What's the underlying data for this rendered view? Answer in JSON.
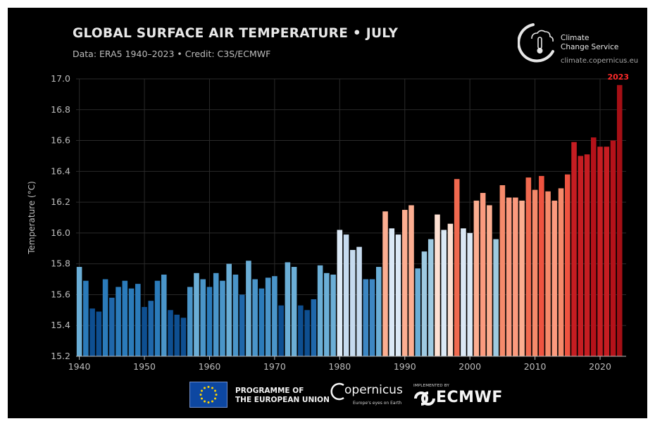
{
  "header": {
    "title": "GLOBAL SURFACE AIR TEMPERATURE • JULY",
    "subtitle": "Data: ERA5 1940–2023 • Credit: C3S/ECMWF"
  },
  "logos": {
    "c3s_line1": "Climate",
    "c3s_line2": "Change Service",
    "c3s_url": "climate.copernicus.eu",
    "eu_line1": "PROGRAMME OF",
    "eu_line2": "THE EUROPEAN UNION",
    "copernicus_name": "opernicus",
    "copernicus_tagline": "Europe's eyes on Earth",
    "ecmwf_implemented": "IMPLEMENTED BY",
    "ecmwf_name": "ECMWF"
  },
  "colors": {
    "background": "#000000",
    "highlight_label": "#ff2a2a"
  },
  "chart_data": {
    "type": "bar",
    "title": "GLOBAL SURFACE AIR TEMPERATURE • JULY",
    "ylabel": "Temperature (°C)",
    "xlabel": "",
    "ylim": [
      15.2,
      17.0
    ],
    "xlim": [
      1939.5,
      2024
    ],
    "yticks": [
      15.2,
      15.4,
      15.6,
      15.8,
      16.0,
      16.2,
      16.4,
      16.6,
      16.8,
      17.0
    ],
    "ytick_labels": [
      "15.2",
      "15.4",
      "15.6",
      "15.8",
      "16.0",
      "16.2",
      "16.4",
      "16.6",
      "16.8",
      "17.0"
    ],
    "xticks": [
      1940,
      1950,
      1960,
      1970,
      1980,
      1990,
      2000,
      2010,
      2020
    ],
    "xtick_labels": [
      "1940",
      "1950",
      "1960",
      "1970",
      "1980",
      "1990",
      "2000",
      "2010",
      "2020"
    ],
    "grid": true,
    "highlight": {
      "year": 2023,
      "label": "2023"
    },
    "years": [
      1940,
      1941,
      1942,
      1943,
      1944,
      1945,
      1946,
      1947,
      1948,
      1949,
      1950,
      1951,
      1952,
      1953,
      1954,
      1955,
      1956,
      1957,
      1958,
      1959,
      1960,
      1961,
      1962,
      1963,
      1964,
      1965,
      1966,
      1967,
      1968,
      1969,
      1970,
      1971,
      1972,
      1973,
      1974,
      1975,
      1976,
      1977,
      1978,
      1979,
      1980,
      1981,
      1982,
      1983,
      1984,
      1985,
      1986,
      1987,
      1988,
      1989,
      1990,
      1991,
      1992,
      1993,
      1994,
      1995,
      1996,
      1997,
      1998,
      1999,
      2000,
      2001,
      2002,
      2003,
      2004,
      2005,
      2006,
      2007,
      2008,
      2009,
      2010,
      2011,
      2012,
      2013,
      2014,
      2015,
      2016,
      2017,
      2018,
      2019,
      2020,
      2021,
      2022,
      2023
    ],
    "values": [
      15.78,
      15.69,
      15.51,
      15.49,
      15.7,
      15.58,
      15.65,
      15.69,
      15.64,
      15.67,
      15.52,
      15.56,
      15.69,
      15.73,
      15.5,
      15.47,
      15.45,
      15.65,
      15.74,
      15.7,
      15.65,
      15.74,
      15.69,
      15.8,
      15.73,
      15.6,
      15.82,
      15.7,
      15.64,
      15.71,
      15.72,
      15.53,
      15.81,
      15.78,
      15.53,
      15.5,
      15.57,
      15.79,
      15.74,
      15.73,
      16.02,
      15.99,
      15.89,
      15.91,
      15.7,
      15.7,
      15.78,
      16.14,
      16.03,
      15.99,
      16.15,
      16.18,
      15.77,
      15.88,
      15.96,
      16.12,
      16.02,
      16.06,
      16.35,
      16.03,
      16.0,
      16.21,
      16.26,
      16.18,
      15.96,
      16.31,
      16.23,
      16.23,
      16.21,
      16.36,
      16.28,
      16.37,
      16.27,
      16.21,
      16.29,
      16.38,
      16.59,
      16.5,
      16.51,
      16.62,
      16.56,
      16.56,
      16.6,
      16.96
    ],
    "colors": [
      "#6baed6",
      "#2b7bba",
      "#0e4f91",
      "#0e4f91",
      "#2b7bba",
      "#1f67aa",
      "#2b7bba",
      "#2b7bba",
      "#2b7bba",
      "#2b7bba",
      "#0e4f91",
      "#1f67aa",
      "#2b7bba",
      "#4a95c9",
      "#0e4f91",
      "#0e4f91",
      "#0e4f91",
      "#4a95c9",
      "#6baed6",
      "#4a95c9",
      "#2b7bba",
      "#4a95c9",
      "#4a95c9",
      "#6baed6",
      "#4a95c9",
      "#1f67aa",
      "#6baed6",
      "#4a95c9",
      "#2b7bba",
      "#4a95c9",
      "#4a95c9",
      "#0e4f91",
      "#6baed6",
      "#6baed6",
      "#0e4f91",
      "#0e4f91",
      "#1f67aa",
      "#6baed6",
      "#6baed6",
      "#6baed6",
      "#dbe9f6",
      "#c6dbef",
      "#c6dbef",
      "#c6dbef",
      "#3d87c3",
      "#3d87c3",
      "#6baed6",
      "#fcae91",
      "#dbe9f6",
      "#dbe9f6",
      "#fcae91",
      "#fcae91",
      "#6baed6",
      "#9ecae1",
      "#9ecae1",
      "#fde0d2",
      "#dbe9f6",
      "#fde0d2",
      "#f0694f",
      "#dbe9f6",
      "#dbe9f6",
      "#fcae91",
      "#fb9a7e",
      "#fcae91",
      "#9ecae1",
      "#f58a6b",
      "#fb9a7e",
      "#fb9a7e",
      "#fcae91",
      "#f0694f",
      "#f58a6b",
      "#ee5340",
      "#f58a6b",
      "#fb9a7e",
      "#f58a6b",
      "#ee5340",
      "#c51d22",
      "#c51d22",
      "#c51d22",
      "#b5121a",
      "#c51d22",
      "#c51d22",
      "#b5121a",
      "#a50f15"
    ]
  }
}
